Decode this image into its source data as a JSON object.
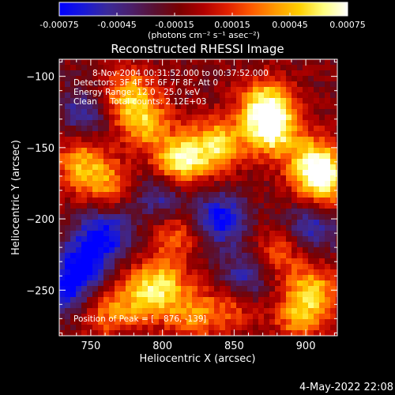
{
  "colorbar": {
    "ticks": [
      "-0.00075",
      "-0.00045",
      "-0.00015",
      "0.00015",
      "0.00045",
      "0.00075"
    ],
    "tick_values": [
      -0.00075,
      -0.00045,
      -0.00015,
      0.00015,
      0.00045,
      0.00075
    ],
    "range": [
      -0.00075,
      0.00075
    ],
    "units": "(photons cm⁻² s⁻¹ asec⁻²)",
    "colors": [
      "#0000ff",
      "#1818d8",
      "#3a2a9a",
      "#4b1f6a",
      "#5a1030",
      "#7a0000",
      "#b00000",
      "#e02000",
      "#ff5a00",
      "#ff9a00",
      "#ffd000",
      "#ffff80",
      "#ffffff"
    ]
  },
  "chart_data": {
    "type": "heatmap",
    "title": "Reconstructed RHESSI Image",
    "xlabel": "Heliocentric X (arcsec)",
    "ylabel": "Heliocentric Y (arcsec)",
    "xlim": [
      728,
      922
    ],
    "ylim": [
      -282,
      -88
    ],
    "xticks": [
      750,
      800,
      850,
      900
    ],
    "yticks": [
      -100,
      -150,
      -200,
      -250
    ],
    "xtick_labels": [
      "750",
      "800",
      "850",
      "900"
    ],
    "ytick_labels": [
      "−100",
      "−150",
      "−200",
      "−250"
    ],
    "annotations": [
      "8-Nov-2004 00:31:52.000 to 00:37:52.000",
      "Detectors: 3F 4F 5F 6F 7F 8F, Att 0",
      "Energy Range: 12.0 - 25.0 keV",
      "Clean     Total counts: 2.12E+03"
    ],
    "peak_label": "Position of Peak = [",
    "peak_position": [
      876,
      -139
    ],
    "peak_position_text": "876, -139",
    "hot_regions": [
      {
        "x": 812,
        "y": -160,
        "level": 1.0
      },
      {
        "x": 838,
        "y": -148,
        "level": 0.9
      },
      {
        "x": 872,
        "y": -120,
        "level": 1.0
      },
      {
        "x": 876,
        "y": -139,
        "level": 1.0
      },
      {
        "x": 906,
        "y": -160,
        "level": 0.85
      },
      {
        "x": 912,
        "y": -175,
        "level": 0.9
      },
      {
        "x": 788,
        "y": -132,
        "level": 0.75
      },
      {
        "x": 775,
        "y": -112,
        "level": 0.7
      },
      {
        "x": 742,
        "y": -160,
        "level": 0.65
      },
      {
        "x": 760,
        "y": -175,
        "level": 0.6
      },
      {
        "x": 810,
        "y": -210,
        "level": 0.5
      },
      {
        "x": 800,
        "y": -245,
        "level": 0.7
      },
      {
        "x": 785,
        "y": -255,
        "level": 0.6
      },
      {
        "x": 760,
        "y": -265,
        "level": 0.55
      },
      {
        "x": 820,
        "y": -268,
        "level": 0.6
      },
      {
        "x": 905,
        "y": -250,
        "level": 0.75
      },
      {
        "x": 895,
        "y": -270,
        "level": 0.6
      },
      {
        "x": 880,
        "y": -225,
        "level": 0.5
      },
      {
        "x": 848,
        "y": -262,
        "level": 0.45
      }
    ],
    "cold_regions": [
      {
        "x": 840,
        "y": -200,
        "level": -0.8
      },
      {
        "x": 760,
        "y": -210,
        "level": -0.75
      },
      {
        "x": 745,
        "y": -230,
        "level": -0.7
      },
      {
        "x": 858,
        "y": -240,
        "level": -0.6
      },
      {
        "x": 905,
        "y": -205,
        "level": -0.6
      },
      {
        "x": 735,
        "y": -250,
        "level": -0.65
      },
      {
        "x": 800,
        "y": -185,
        "level": -0.55
      },
      {
        "x": 745,
        "y": -125,
        "level": -0.5
      }
    ]
  },
  "timestamp": "4-May-2022 22:08"
}
